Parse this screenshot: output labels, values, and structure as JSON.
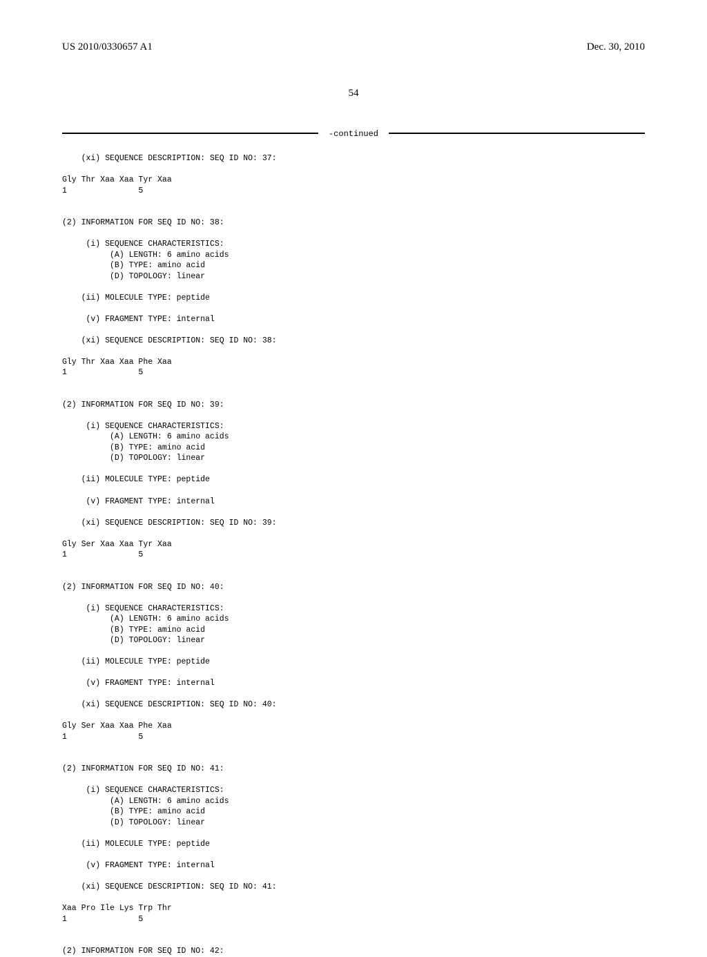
{
  "header": {
    "pub_number": "US 2010/0330657 A1",
    "pub_date": "Dec. 30, 2010"
  },
  "page_number": "54",
  "continued_label": "-continued",
  "listing": "    (xi) SEQUENCE DESCRIPTION: SEQ ID NO: 37:\n\nGly Thr Xaa Xaa Tyr Xaa\n1               5\n\n\n(2) INFORMATION FOR SEQ ID NO: 38:\n\n     (i) SEQUENCE CHARACTERISTICS:\n          (A) LENGTH: 6 amino acids\n          (B) TYPE: amino acid\n          (D) TOPOLOGY: linear\n\n    (ii) MOLECULE TYPE: peptide\n\n     (v) FRAGMENT TYPE: internal\n\n    (xi) SEQUENCE DESCRIPTION: SEQ ID NO: 38:\n\nGly Thr Xaa Xaa Phe Xaa\n1               5\n\n\n(2) INFORMATION FOR SEQ ID NO: 39:\n\n     (i) SEQUENCE CHARACTERISTICS:\n          (A) LENGTH: 6 amino acids\n          (B) TYPE: amino acid\n          (D) TOPOLOGY: linear\n\n    (ii) MOLECULE TYPE: peptide\n\n     (v) FRAGMENT TYPE: internal\n\n    (xi) SEQUENCE DESCRIPTION: SEQ ID NO: 39:\n\nGly Ser Xaa Xaa Tyr Xaa\n1               5\n\n\n(2) INFORMATION FOR SEQ ID NO: 40:\n\n     (i) SEQUENCE CHARACTERISTICS:\n          (A) LENGTH: 6 amino acids\n          (B) TYPE: amino acid\n          (D) TOPOLOGY: linear\n\n    (ii) MOLECULE TYPE: peptide\n\n     (v) FRAGMENT TYPE: internal\n\n    (xi) SEQUENCE DESCRIPTION: SEQ ID NO: 40:\n\nGly Ser Xaa Xaa Phe Xaa\n1               5\n\n\n(2) INFORMATION FOR SEQ ID NO: 41:\n\n     (i) SEQUENCE CHARACTERISTICS:\n          (A) LENGTH: 6 amino acids\n          (B) TYPE: amino acid\n          (D) TOPOLOGY: linear\n\n    (ii) MOLECULE TYPE: peptide\n\n     (v) FRAGMENT TYPE: internal\n\n    (xi) SEQUENCE DESCRIPTION: SEQ ID NO: 41:\n\nXaa Pro Ile Lys Trp Thr\n1               5\n\n\n(2) INFORMATION FOR SEQ ID NO: 42:"
}
